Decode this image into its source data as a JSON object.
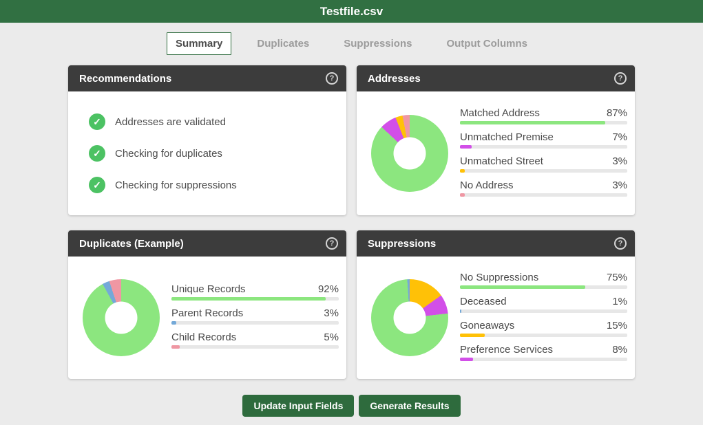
{
  "header": {
    "title": "Testfile.csv"
  },
  "tabs": [
    {
      "label": "Summary",
      "active": true
    },
    {
      "label": "Duplicates",
      "active": false
    },
    {
      "label": "Suppressions",
      "active": false
    },
    {
      "label": "Output Columns",
      "active": false
    }
  ],
  "icons": {
    "help_glyph": "?",
    "check_glyph": "✓"
  },
  "panels": {
    "recommendations": {
      "title": "Recommendations",
      "items": [
        "Addresses are validated",
        "Checking for duplicates",
        "Checking for suppressions"
      ]
    },
    "addresses": {
      "title": "Addresses"
    },
    "duplicates": {
      "title": "Duplicates (Example)"
    },
    "suppressions": {
      "title": "Suppressions"
    }
  },
  "chart_data": [
    {
      "type": "pie",
      "title": "Addresses",
      "categories": [
        "Matched Address",
        "Unmatched Premise",
        "Unmatched Street",
        "No Address"
      ],
      "values": [
        87,
        7,
        3,
        3
      ],
      "colors": [
        "#8ce67f",
        "#d24fe8",
        "#ffc107",
        "#ef97a3"
      ],
      "donut_hole": true,
      "draw_order_from_top": [
        0,
        1,
        2,
        3
      ],
      "legend_position": "right"
    },
    {
      "type": "pie",
      "title": "Duplicates (Example)",
      "categories": [
        "Unique Records",
        "Parent Records",
        "Child Records"
      ],
      "values": [
        92,
        3,
        5
      ],
      "colors": [
        "#8ce67f",
        "#74a9d8",
        "#ef97a3"
      ],
      "donut_hole": true,
      "draw_order_from_top": [
        0,
        1,
        2
      ],
      "legend_position": "right"
    },
    {
      "type": "pie",
      "title": "Suppressions",
      "categories": [
        "No Suppressions",
        "Deceased",
        "Goneaways",
        "Preference Services"
      ],
      "values": [
        75,
        1,
        15,
        8
      ],
      "colors": [
        "#8ce67f",
        "#74a9d8",
        "#ffc107",
        "#d24fe8"
      ],
      "donut_hole": true,
      "draw_order_from_top": [
        2,
        3,
        0,
        1
      ],
      "legend_position": "right"
    }
  ],
  "footer": {
    "buttons": [
      {
        "label": "Update Input Fields"
      },
      {
        "label": "Generate Results"
      }
    ]
  },
  "colors": {
    "header_green": "#317042",
    "button_green": "#2e6b3d",
    "panel_header_dark": "#3c3c3c",
    "check_green": "#4cc263",
    "page_bg": "#ebebeb"
  }
}
